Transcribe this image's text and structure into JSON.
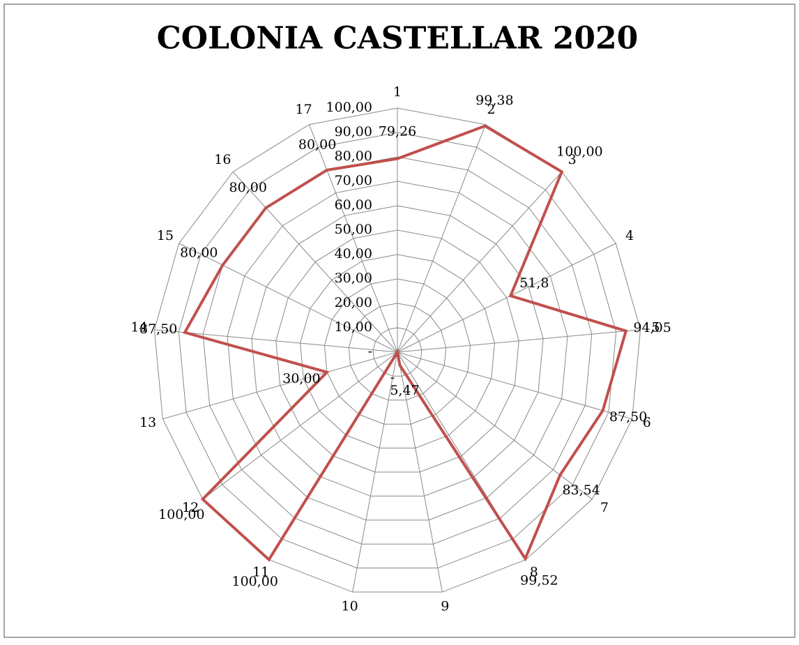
{
  "chart_data": {
    "type": "radar",
    "title": "COLONIA CASTELLAR 2020",
    "categories": [
      "1",
      "2",
      "3",
      "4",
      "5",
      "6",
      "7",
      "8",
      "9",
      "10",
      "11",
      "12",
      "13",
      "14",
      "15",
      "16",
      "17"
    ],
    "series": [
      {
        "color": "#c0504d",
        "values": [
          79.26,
          99.38,
          100,
          51.8,
          94.05,
          87.5,
          83.54,
          99.52,
          5.47,
          0,
          100,
          100,
          30,
          87.5,
          80,
          80,
          80
        ],
        "value_labels": [
          "79,26",
          "99,38",
          "100,00",
          "51,8",
          "94,05",
          "87,50",
          "83,54",
          "99,52",
          "5,47",
          "-",
          "100,00",
          "100,00",
          "30,00",
          "87,50",
          "80,00",
          "80,00",
          "80,00"
        ]
      }
    ],
    "ylim": [
      0,
      100
    ],
    "yticks": [
      {
        "value": 0,
        "label": "-"
      },
      {
        "value": 10,
        "label": "10,00"
      },
      {
        "value": 20,
        "label": "20,00"
      },
      {
        "value": 30,
        "label": "30,00"
      },
      {
        "value": 40,
        "label": "40,00"
      },
      {
        "value": 50,
        "label": "50,00"
      },
      {
        "value": 60,
        "label": "60,00"
      },
      {
        "value": 70,
        "label": "70,00"
      },
      {
        "value": 80,
        "label": "80,00"
      },
      {
        "value": 90,
        "label": "90,00"
      },
      {
        "value": 100,
        "label": "100,00"
      }
    ],
    "grid": true
  }
}
